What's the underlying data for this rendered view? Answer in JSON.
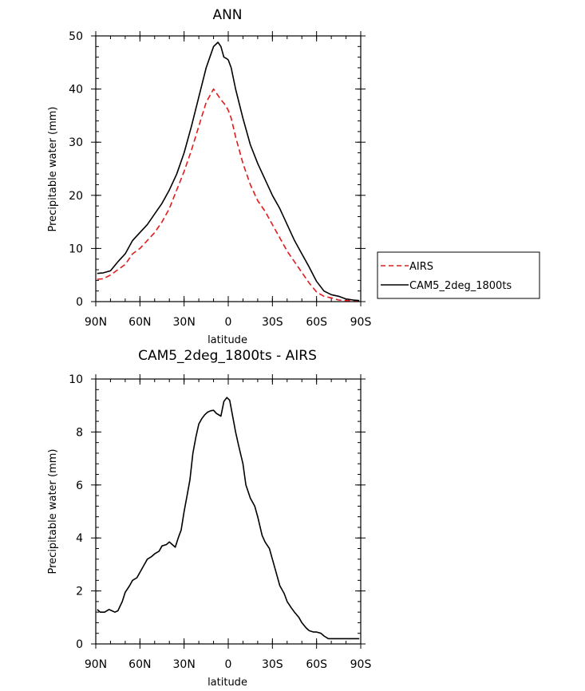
{
  "chart_data": [
    {
      "type": "line",
      "title": "ANN",
      "xlabel": "latitude",
      "ylabel": "Precipitable water (mm)",
      "xlim": [
        90,
        -90
      ],
      "ylim": [
        0,
        50
      ],
      "x_tick_values": [
        90,
        60,
        30,
        0,
        -30,
        -60,
        -90
      ],
      "x_tick_labels": [
        "90N",
        "60N",
        "30N",
        "0",
        "30S",
        "60S",
        "90S"
      ],
      "y_tick_values": [
        0,
        10,
        20,
        30,
        40,
        50
      ],
      "y_tick_labels": [
        "0",
        "10",
        "20",
        "30",
        "40",
        "50"
      ],
      "legend": [
        "AIRS",
        "CAM5_2deg_1800ts"
      ],
      "legend_position": "right",
      "series": [
        {
          "name": "AIRS",
          "color": "#e31a1c",
          "dash": "dashed",
          "x": [
            89,
            85,
            80,
            75,
            70,
            65,
            60,
            55,
            50,
            45,
            40,
            35,
            30,
            25,
            20,
            15,
            10,
            5,
            2,
            0,
            -2,
            -5,
            -10,
            -15,
            -20,
            -25,
            -30,
            -35,
            -40,
            -45,
            -50,
            -55,
            -60,
            -65,
            -70,
            -75,
            -80,
            -85,
            -89
          ],
          "values": [
            4.2,
            4.3,
            5.0,
            6.0,
            7.0,
            9.0,
            10.0,
            11.5,
            13.0,
            15.0,
            17.5,
            21.0,
            24.5,
            28.5,
            33.0,
            37.5,
            40.0,
            38.0,
            37.0,
            36.0,
            34.5,
            31.0,
            26.0,
            22.0,
            19.0,
            17.0,
            14.5,
            12.0,
            9.5,
            7.5,
            5.5,
            3.5,
            1.8,
            1.0,
            0.7,
            0.3,
            0.2,
            0.2,
            0.2
          ]
        },
        {
          "name": "CAM5_2deg_1800ts",
          "color": "#000000",
          "dash": "solid",
          "x": [
            89,
            85,
            80,
            75,
            70,
            65,
            60,
            55,
            50,
            45,
            40,
            35,
            30,
            25,
            20,
            15,
            10,
            7,
            5,
            3,
            1,
            0,
            -2,
            -5,
            -10,
            -15,
            -20,
            -25,
            -30,
            -35,
            -40,
            -45,
            -50,
            -55,
            -60,
            -65,
            -70,
            -75,
            -80,
            -85,
            -89
          ],
          "values": [
            5.3,
            5.4,
            5.8,
            7.5,
            9.0,
            11.5,
            13.0,
            14.5,
            16.5,
            18.5,
            21.0,
            24.0,
            28.0,
            33.0,
            38.5,
            44.0,
            48.0,
            48.8,
            48.0,
            46.0,
            45.7,
            45.5,
            44.0,
            40.0,
            34.5,
            29.5,
            26.0,
            23.0,
            20.0,
            17.5,
            14.5,
            11.5,
            9.0,
            6.5,
            3.8,
            2.0,
            1.3,
            1.0,
            0.5,
            0.3,
            0.2
          ]
        }
      ]
    },
    {
      "type": "line",
      "title": "CAM5_2deg_1800ts - AIRS",
      "xlabel": "latitude",
      "ylabel": "Precipitable water (mm)",
      "xlim": [
        90,
        -90
      ],
      "ylim": [
        0,
        10
      ],
      "x_tick_values": [
        90,
        60,
        30,
        0,
        -30,
        -60,
        -90
      ],
      "x_tick_labels": [
        "90N",
        "60N",
        "30N",
        "0",
        "30S",
        "60S",
        "90S"
      ],
      "y_tick_values": [
        0,
        2,
        4,
        6,
        8,
        10
      ],
      "y_tick_labels": [
        "0",
        "2",
        "4",
        "6",
        "8",
        "10"
      ],
      "series": [
        {
          "name": "CAM5_2deg_1800ts - AIRS",
          "color": "#000000",
          "dash": "solid",
          "x": [
            89,
            87,
            84,
            81,
            79,
            77,
            75,
            72,
            70,
            67,
            65,
            62,
            60,
            57,
            55,
            52,
            50,
            47,
            45,
            42,
            40,
            38,
            36,
            34,
            32,
            30,
            28,
            26,
            24,
            22,
            20,
            18,
            16,
            14,
            12,
            10,
            8,
            5,
            3,
            1,
            -1,
            -3,
            -5,
            -7,
            -10,
            -12,
            -15,
            -18,
            -20,
            -23,
            -25,
            -28,
            -30,
            -33,
            -35,
            -38,
            -40,
            -43,
            -45,
            -48,
            -50,
            -53,
            -55,
            -58,
            -60,
            -63,
            -65,
            -68,
            -70,
            -73,
            -75,
            -78,
            -80,
            -83,
            -85,
            -87,
            -89
          ],
          "values": [
            1.3,
            1.2,
            1.2,
            1.3,
            1.25,
            1.2,
            1.25,
            1.6,
            1.95,
            2.2,
            2.4,
            2.5,
            2.7,
            3.0,
            3.2,
            3.3,
            3.4,
            3.5,
            3.7,
            3.75,
            3.85,
            3.75,
            3.65,
            4.0,
            4.3,
            5.0,
            5.6,
            6.2,
            7.2,
            7.8,
            8.3,
            8.5,
            8.65,
            8.75,
            8.8,
            8.82,
            8.7,
            8.6,
            9.15,
            9.3,
            9.2,
            8.6,
            8.0,
            7.5,
            6.8,
            6.0,
            5.5,
            5.2,
            4.8,
            4.1,
            3.85,
            3.6,
            3.2,
            2.6,
            2.2,
            1.9,
            1.6,
            1.35,
            1.2,
            1.0,
            0.8,
            0.6,
            0.5,
            0.45,
            0.45,
            0.4,
            0.3,
            0.2,
            0.2,
            0.2,
            0.2,
            0.2,
            0.2,
            0.2,
            0.2,
            0.2,
            0.2
          ]
        }
      ]
    }
  ]
}
